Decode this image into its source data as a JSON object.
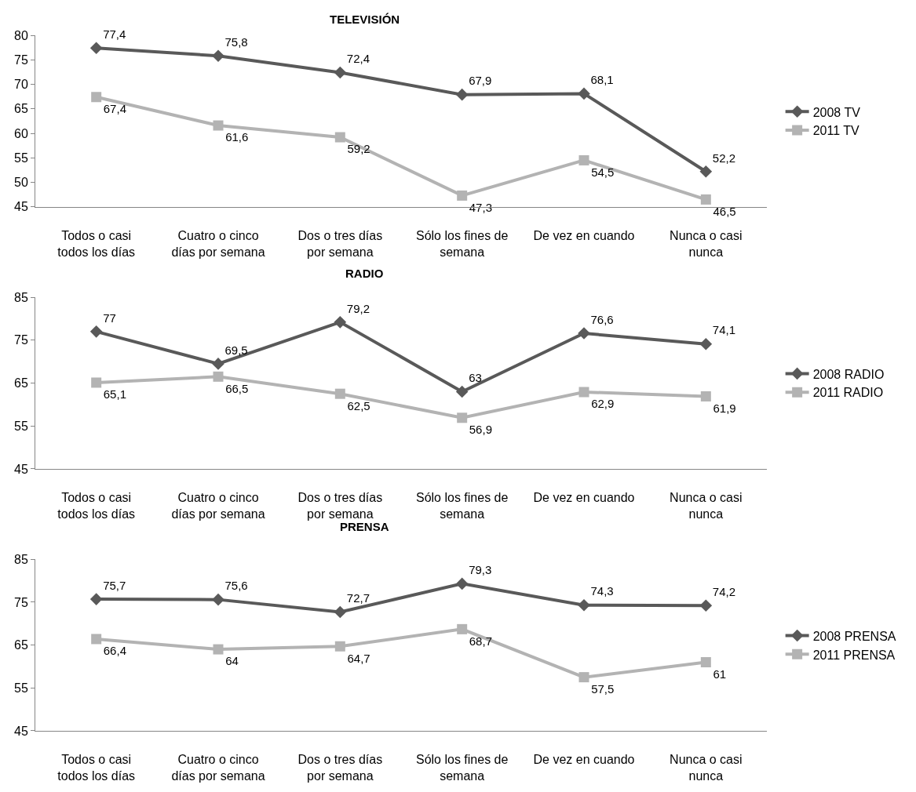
{
  "chart_data": [
    {
      "type": "line",
      "title": "TELEVISIÓN",
      "categories": [
        "Todos o casi todos los días",
        "Cuatro o cinco días por semana",
        "Dos o tres días por semana",
        "Sólo los fines de semana",
        "De vez en cuando",
        "Nunca o casi nunca"
      ],
      "series": [
        {
          "name": "2008 TV",
          "color": "#595959",
          "marker": "diamond",
          "values": [
            77.4,
            75.8,
            72.4,
            67.9,
            68.1,
            52.2
          ],
          "value_labels": [
            "77,4",
            "75,8",
            "72,4",
            "67,9",
            "68,1",
            "52,2"
          ]
        },
        {
          "name": "2011 TV",
          "color": "#b3b3b3",
          "marker": "square",
          "values": [
            67.4,
            61.6,
            59.2,
            47.3,
            54.5,
            46.5
          ],
          "value_labels": [
            "67,4",
            "61,6",
            "59,2",
            "47,3",
            "54,5",
            "46,5"
          ]
        }
      ],
      "ylim": [
        45,
        80
      ],
      "yticks": [
        45,
        50,
        55,
        60,
        65,
        70,
        75,
        80
      ],
      "legend": "right",
      "line_style": "solid"
    },
    {
      "type": "line",
      "title": "RADIO",
      "categories": [
        "Todos o casi todos los días",
        "Cuatro o cinco días por semana",
        "Dos o tres días por semana",
        "Sólo los fines de semana",
        "De vez en cuando",
        "Nunca o casi nunca"
      ],
      "series": [
        {
          "name": "2008 RADIO",
          "color": "#595959",
          "marker": "diamond",
          "values": [
            77,
            69.5,
            79.2,
            63,
            76.6,
            74.1
          ],
          "value_labels": [
            "77",
            "69,5",
            "79,2",
            "63",
            "76,6",
            "74,1"
          ]
        },
        {
          "name": "2011 RADIO",
          "color": "#b3b3b3",
          "marker": "square",
          "values": [
            65.1,
            66.5,
            62.5,
            56.9,
            62.9,
            61.9
          ],
          "value_labels": [
            "65,1",
            "66,5",
            "62,5",
            "56,9",
            "62,9",
            "61,9"
          ]
        }
      ],
      "ylim": [
        45,
        85
      ],
      "yticks": [
        45,
        55,
        65,
        75,
        85
      ],
      "legend": "right",
      "line_style": "solid"
    },
    {
      "type": "line",
      "title": "PRENSA",
      "categories": [
        "Todos o casi todos los días",
        "Cuatro o cinco días por semana",
        "Dos o tres días por semana",
        "Sólo los fines de semana",
        "De vez en cuando",
        "Nunca o casi nunca"
      ],
      "series": [
        {
          "name": "2008 PRENSA",
          "color": "#595959",
          "marker": "diamond",
          "values": [
            75.7,
            75.6,
            72.7,
            79.3,
            74.3,
            74.2
          ],
          "value_labels": [
            "75,7",
            "75,6",
            "72,7",
            "79,3",
            "74,3",
            "74,2"
          ]
        },
        {
          "name": "2011 PRENSA",
          "color": "#b3b3b3",
          "marker": "square",
          "values": [
            66.4,
            64,
            64.7,
            68.7,
            57.5,
            61
          ],
          "value_labels": [
            "66,4",
            "64",
            "64,7",
            "68,7",
            "57,5",
            "61"
          ]
        }
      ],
      "ylim": [
        45,
        85
      ],
      "yticks": [
        45,
        55,
        65,
        75,
        85
      ],
      "legend": "right",
      "line_style": "solid"
    }
  ]
}
